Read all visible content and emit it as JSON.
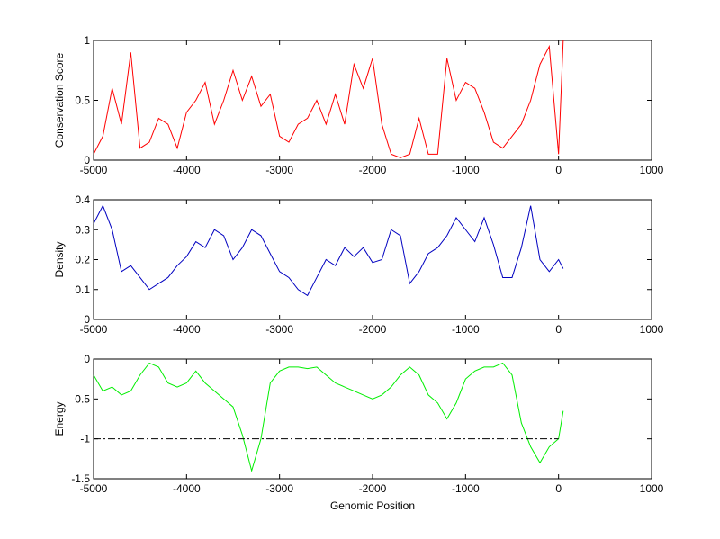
{
  "chart_data": [
    {
      "type": "line",
      "ylabel": "Conservation Score",
      "x": [
        -5000,
        -4900,
        -4800,
        -4700,
        -4600,
        -4500,
        -4400,
        -4300,
        -4200,
        -4100,
        -4000,
        -3900,
        -3800,
        -3700,
        -3600,
        -3500,
        -3400,
        -3300,
        -3200,
        -3100,
        -3000,
        -2900,
        -2800,
        -2700,
        -2600,
        -2500,
        -2400,
        -2300,
        -2200,
        -2100,
        -2000,
        -1900,
        -1800,
        -1700,
        -1600,
        -1500,
        -1400,
        -1300,
        -1200,
        -1100,
        -1000,
        -900,
        -800,
        -700,
        -600,
        -500,
        -400,
        -300,
        -200,
        -100,
        0,
        50
      ],
      "series": [
        {
          "color": "#ff0000",
          "values": [
            0.05,
            0.2,
            0.6,
            0.3,
            0.9,
            0.1,
            0.15,
            0.35,
            0.3,
            0.1,
            0.4,
            0.5,
            0.65,
            0.3,
            0.5,
            0.75,
            0.5,
            0.7,
            0.45,
            0.55,
            0.2,
            0.15,
            0.3,
            0.35,
            0.5,
            0.3,
            0.55,
            0.3,
            0.8,
            0.6,
            0.85,
            0.3,
            0.05,
            0.02,
            0.05,
            0.35,
            0.05,
            0.05,
            0.85,
            0.5,
            0.65,
            0.6,
            0.4,
            0.15,
            0.1,
            0.2,
            0.3,
            0.5,
            0.8,
            0.95,
            0.05,
            1
          ]
        }
      ],
      "xlim": [
        -5000,
        1000
      ],
      "xticks": [
        -5000,
        -4000,
        -3000,
        -2000,
        -1000,
        0,
        1000
      ],
      "ylim": [
        0,
        1
      ],
      "yticks": [
        0,
        0.5,
        1
      ]
    },
    {
      "type": "line",
      "ylabel": "Density",
      "x": [
        -5000,
        -4900,
        -4800,
        -4700,
        -4600,
        -4500,
        -4400,
        -4300,
        -4200,
        -4100,
        -4000,
        -3900,
        -3800,
        -3700,
        -3600,
        -3500,
        -3400,
        -3300,
        -3200,
        -3100,
        -3000,
        -2900,
        -2800,
        -2700,
        -2600,
        -2500,
        -2400,
        -2300,
        -2200,
        -2100,
        -2000,
        -1900,
        -1800,
        -1700,
        -1600,
        -1500,
        -1400,
        -1300,
        -1200,
        -1100,
        -1000,
        -900,
        -800,
        -700,
        -600,
        -500,
        -400,
        -300,
        -200,
        -100,
        0,
        50
      ],
      "series": [
        {
          "color": "#0000c0",
          "values": [
            0.32,
            0.38,
            0.3,
            0.16,
            0.18,
            0.14,
            0.1,
            0.12,
            0.14,
            0.18,
            0.21,
            0.26,
            0.24,
            0.3,
            0.28,
            0.2,
            0.24,
            0.3,
            0.28,
            0.22,
            0.16,
            0.14,
            0.1,
            0.08,
            0.14,
            0.2,
            0.18,
            0.24,
            0.21,
            0.24,
            0.19,
            0.2,
            0.3,
            0.28,
            0.12,
            0.16,
            0.22,
            0.24,
            0.28,
            0.34,
            0.3,
            0.26,
            0.34,
            0.25,
            0.14,
            0.14,
            0.24,
            0.38,
            0.2,
            0.16,
            0.2,
            0.17
          ]
        }
      ],
      "xlim": [
        -5000,
        1000
      ],
      "xticks": [
        -5000,
        -4000,
        -3000,
        -2000,
        -1000,
        0,
        1000
      ],
      "ylim": [
        0,
        0.4
      ],
      "yticks": [
        0,
        0.1,
        0.2,
        0.3,
        0.4
      ]
    },
    {
      "type": "line",
      "ylabel": "Energy",
      "xlabel": "Genomic Position",
      "x": [
        -5000,
        -4900,
        -4800,
        -4700,
        -4600,
        -4500,
        -4400,
        -4300,
        -4200,
        -4100,
        -4000,
        -3900,
        -3800,
        -3700,
        -3600,
        -3500,
        -3400,
        -3300,
        -3200,
        -3100,
        -3000,
        -2900,
        -2800,
        -2700,
        -2600,
        -2500,
        -2400,
        -2300,
        -2200,
        -2100,
        -2000,
        -1900,
        -1800,
        -1700,
        -1600,
        -1500,
        -1400,
        -1300,
        -1200,
        -1100,
        -1000,
        -900,
        -800,
        -700,
        -600,
        -500,
        -400,
        -300,
        -200,
        -100,
        0,
        50
      ],
      "series": [
        {
          "color": "#00ee00",
          "values": [
            -0.2,
            -0.4,
            -0.35,
            -0.45,
            -0.4,
            -0.2,
            -0.05,
            -0.1,
            -0.3,
            -0.35,
            -0.3,
            -0.15,
            -0.3,
            -0.4,
            -0.5,
            -0.6,
            -0.95,
            -1.4,
            -1.0,
            -0.3,
            -0.15,
            -0.1,
            -0.1,
            -0.12,
            -0.1,
            -0.2,
            -0.3,
            -0.35,
            -0.4,
            -0.45,
            -0.5,
            -0.45,
            -0.35,
            -0.2,
            -0.1,
            -0.2,
            -0.45,
            -0.55,
            -0.75,
            -0.55,
            -0.25,
            -0.15,
            -0.1,
            -0.1,
            -0.05,
            -0.2,
            -0.8,
            -1.1,
            -1.3,
            -1.1,
            -1.0,
            -0.65
          ]
        },
        {
          "color": "#000000",
          "dash": "dashdot",
          "x": [
            -5000,
            0
          ],
          "values": [
            -1,
            -1
          ]
        }
      ],
      "xlim": [
        -5000,
        1000
      ],
      "xticks": [
        -5000,
        -4000,
        -3000,
        -2000,
        -1000,
        0,
        1000
      ],
      "ylim": [
        -1.5,
        0
      ],
      "yticks": [
        -1.5,
        -1,
        -0.5,
        0
      ]
    }
  ]
}
